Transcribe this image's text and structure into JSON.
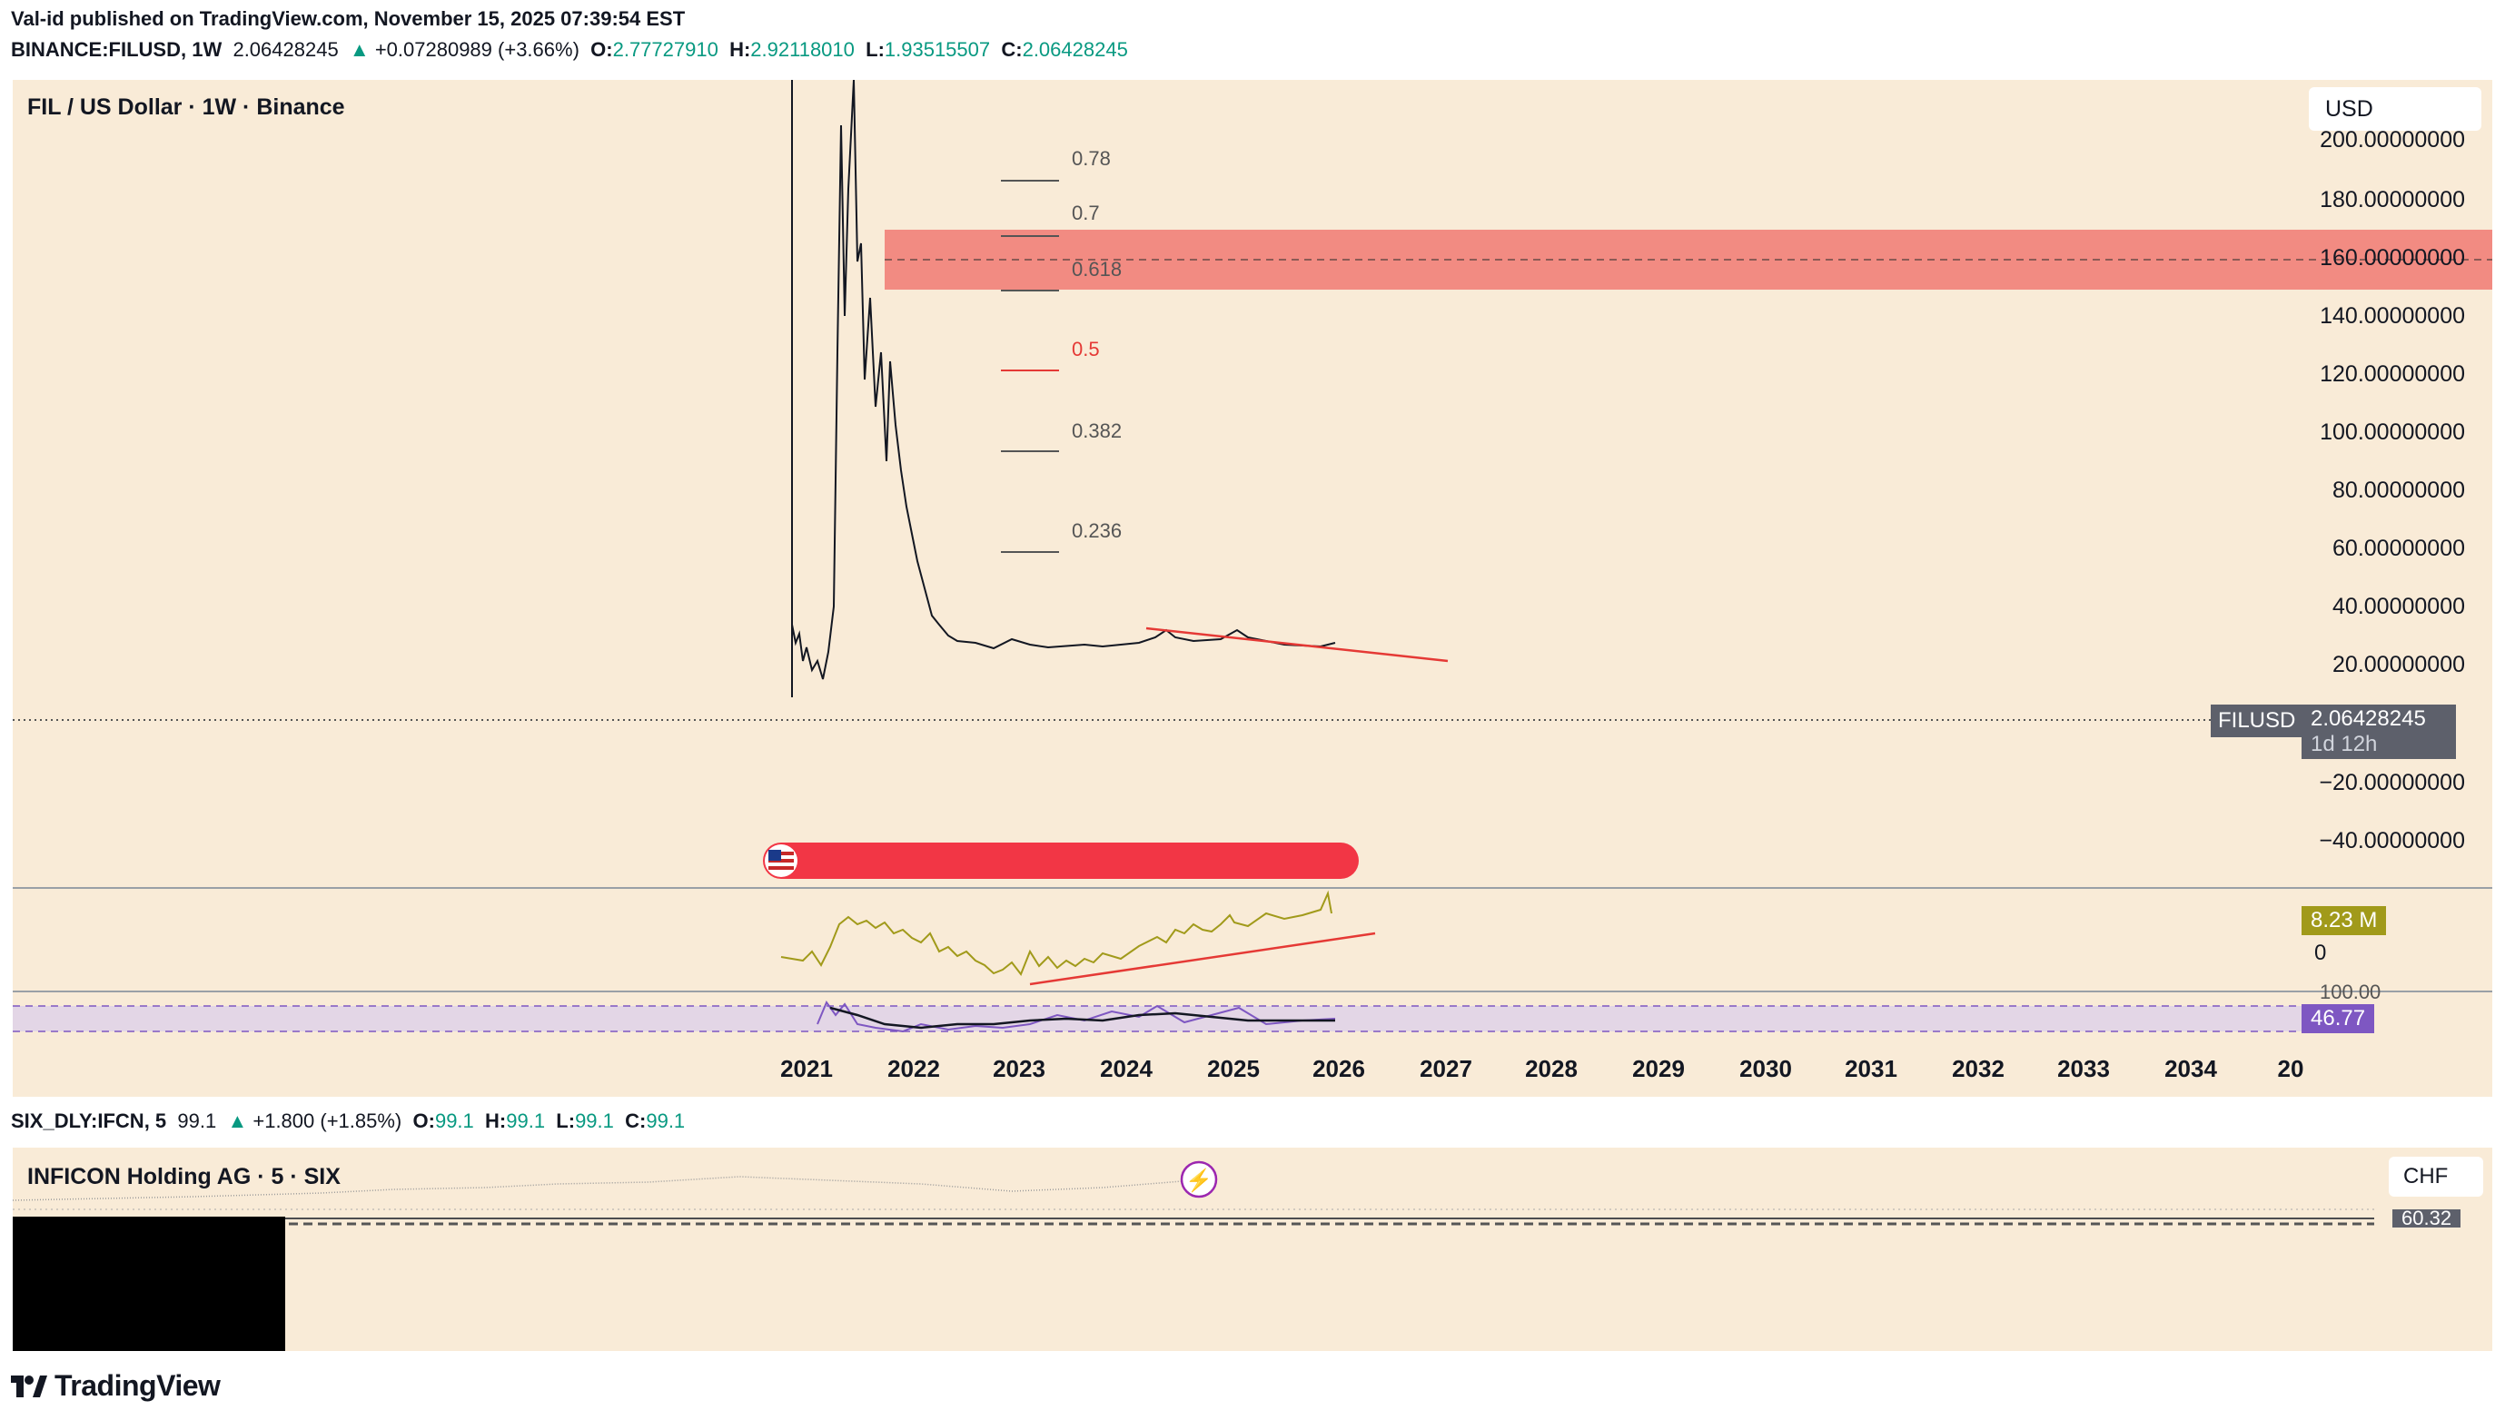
{
  "header": {
    "line1": "Val-id published on TradingView.com, November 15, 2025 07:39:54 EST",
    "symbol": "BINANCE:FILUSD, 1W",
    "price": "2.06428245",
    "change": "+0.07280989 (+3.66%)",
    "o_label": "O:",
    "o_value": "2.77727910",
    "h_label": "H:",
    "h_value": "2.92118010",
    "l_label": "L:",
    "l_value": "1.93515507",
    "c_label": "C:",
    "c_value": "2.06428245"
  },
  "main_chart": {
    "legend": "FIL / US Dollar · 1W · Binance",
    "currency_button": "USD",
    "price_axis": [
      "200.00000000",
      "180.00000000",
      "160.00000000",
      "140.00000000",
      "120.00000000",
      "100.00000000",
      "80.00000000",
      "60.00000000",
      "40.00000000",
      "20.00000000",
      "−20.00000000",
      "−40.00000000"
    ],
    "fib_levels": [
      "0.78",
      "0.7",
      "0.618",
      "0.5",
      "0.382",
      "0.236"
    ],
    "last_price_symbol": "FILUSD",
    "last_price_value": "2.06428245",
    "countdown": "1d 12h",
    "years": [
      "2021",
      "2022",
      "2023",
      "2024",
      "2025",
      "2026",
      "2027",
      "2028",
      "2029",
      "2030",
      "2031",
      "2032",
      "2033",
      "2034",
      "20"
    ]
  },
  "volume_pane": {
    "value_badge": "8.23 M",
    "zero_label": "0"
  },
  "rsi_pane": {
    "top_label": "100.00",
    "value_badge": "46.77"
  },
  "second_chart": {
    "symbol": "SIX_DLY:IFCN, 5",
    "price": "99.1",
    "change": "+1.800 (+1.85%)",
    "o_label": "O:",
    "o_value": "99.1",
    "h_label": "H:",
    "h_value": "99.1",
    "l_label": "L:",
    "l_value": "99.1",
    "c_label": "C:",
    "c_value": "99.1",
    "legend": "INFICON Holding AG · 5 · SIX",
    "currency_button": "CHF",
    "price_badge": "60.32"
  },
  "footer": {
    "brand": "TradingView"
  },
  "colors": {
    "pane_bg": "#f9ebd7",
    "up": "#089981",
    "zone": "#f28b82",
    "fib_mid": "#e53935",
    "volume_line": "#a19a1a",
    "rsi": "#7e57c2"
  },
  "icons": [
    "us-flag-icon",
    "lightning-icon",
    "tradingview-logo-icon"
  ]
}
